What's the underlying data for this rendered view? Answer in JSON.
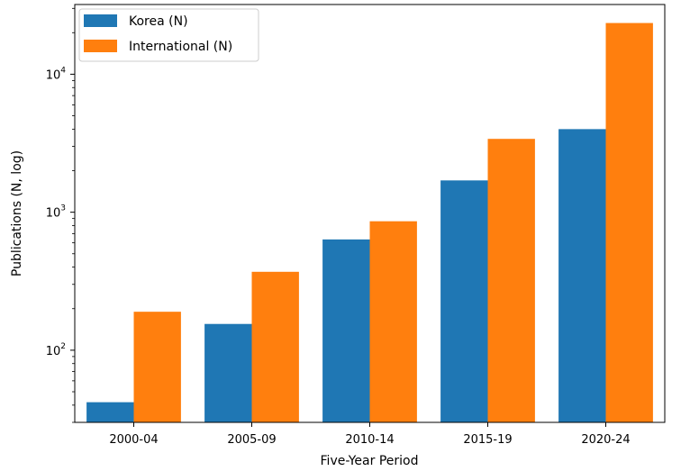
{
  "chart_data": {
    "type": "bar",
    "categories": [
      "2000-04",
      "2005-09",
      "2010-14",
      "2015-19",
      "2020-24"
    ],
    "series": [
      {
        "name": "Korea (N)",
        "color": "#1f77b4",
        "values": [
          42,
          155,
          635,
          1700,
          4000
        ]
      },
      {
        "name": "International (N)",
        "color": "#ff7f0e",
        "values": [
          190,
          370,
          860,
          3400,
          23500
        ]
      }
    ],
    "xlabel": "Five-Year Period",
    "ylabel": "Publications (N, log)",
    "yscale": "log",
    "ylim": [
      30,
      32000
    ],
    "yticks": [
      {
        "value": 100,
        "base": "10",
        "exp": "2"
      },
      {
        "value": 1000,
        "base": "10",
        "exp": "3"
      },
      {
        "value": 10000,
        "base": "10",
        "exp": "4"
      }
    ],
    "grid": false,
    "legend_position": "top-left"
  }
}
